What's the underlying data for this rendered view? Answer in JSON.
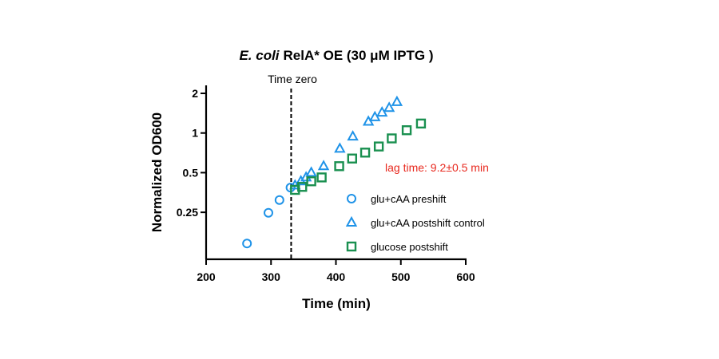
{
  "chart_data": {
    "type": "scatter",
    "title_italic": "E. coli",
    "title_rest": "RelA* OE (30 μM IPTG )",
    "xlabel": "Time (min)",
    "ylabel": "Normalized OD600",
    "xlim": [
      200,
      600
    ],
    "ylim": [
      0.11,
      2.3
    ],
    "yscale": "log2",
    "x_ticks": [
      200,
      300,
      400,
      500,
      600
    ],
    "x_tick_labels": [
      "200",
      "300",
      "400",
      "500",
      "600"
    ],
    "y_ticks": [
      0.25,
      0.5,
      1,
      2
    ],
    "y_tick_labels": [
      "0.25",
      "0.5",
      "1",
      "2"
    ],
    "grid": false,
    "legend_position": "right",
    "annotations": {
      "time_zero_label": "Time zero",
      "time_zero_x": 331,
      "lag_text": "lag time: 9.2±0.5 min",
      "lag_color": "#e8281e"
    },
    "series": [
      {
        "name": "glu+cAA preshift",
        "marker": "circle",
        "color": "#1f93e8",
        "points": [
          [
            263,
            0.145
          ],
          [
            296,
            0.248
          ],
          [
            313,
            0.31
          ],
          [
            330,
            0.385
          ]
        ]
      },
      {
        "name": "glu+cAA postshift control",
        "marker": "triangle",
        "color": "#1f93e8",
        "points": [
          [
            337,
            0.4
          ],
          [
            346,
            0.43
          ],
          [
            354,
            0.46
          ],
          [
            362,
            0.5
          ],
          [
            381,
            0.56
          ],
          [
            406,
            0.76
          ],
          [
            426,
            0.94
          ],
          [
            450,
            1.22
          ],
          [
            460,
            1.32
          ],
          [
            471,
            1.43
          ],
          [
            482,
            1.55
          ],
          [
            494,
            1.72
          ]
        ]
      },
      {
        "name": "glucose postshift",
        "marker": "square",
        "color": "#1a9050",
        "points": [
          [
            337,
            0.37
          ],
          [
            348,
            0.39
          ],
          [
            362,
            0.43
          ],
          [
            378,
            0.46
          ],
          [
            405,
            0.56
          ],
          [
            425,
            0.64
          ],
          [
            445,
            0.71
          ],
          [
            466,
            0.79
          ],
          [
            486,
            0.91
          ],
          [
            509,
            1.05
          ],
          [
            531,
            1.18
          ]
        ]
      }
    ]
  }
}
